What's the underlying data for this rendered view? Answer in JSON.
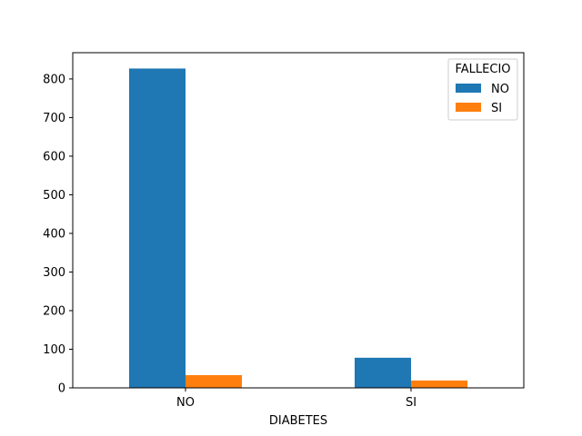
{
  "chart_data": {
    "type": "bar",
    "title": "",
    "xlabel": "DIABETES",
    "ylabel": "",
    "categories": [
      "NO",
      "SI"
    ],
    "series": [
      {
        "name": "NO",
        "values": [
          827,
          78
        ],
        "color": "#1f77b4"
      },
      {
        "name": "SI",
        "values": [
          33,
          19
        ],
        "color": "#ff7f0e"
      }
    ],
    "ylim": [
      0,
      868
    ],
    "yticks": [
      0,
      100,
      200,
      300,
      400,
      500,
      600,
      700,
      800
    ],
    "legend": {
      "title": "FALLECIO",
      "placement": "top-right"
    },
    "grid": false
  }
}
